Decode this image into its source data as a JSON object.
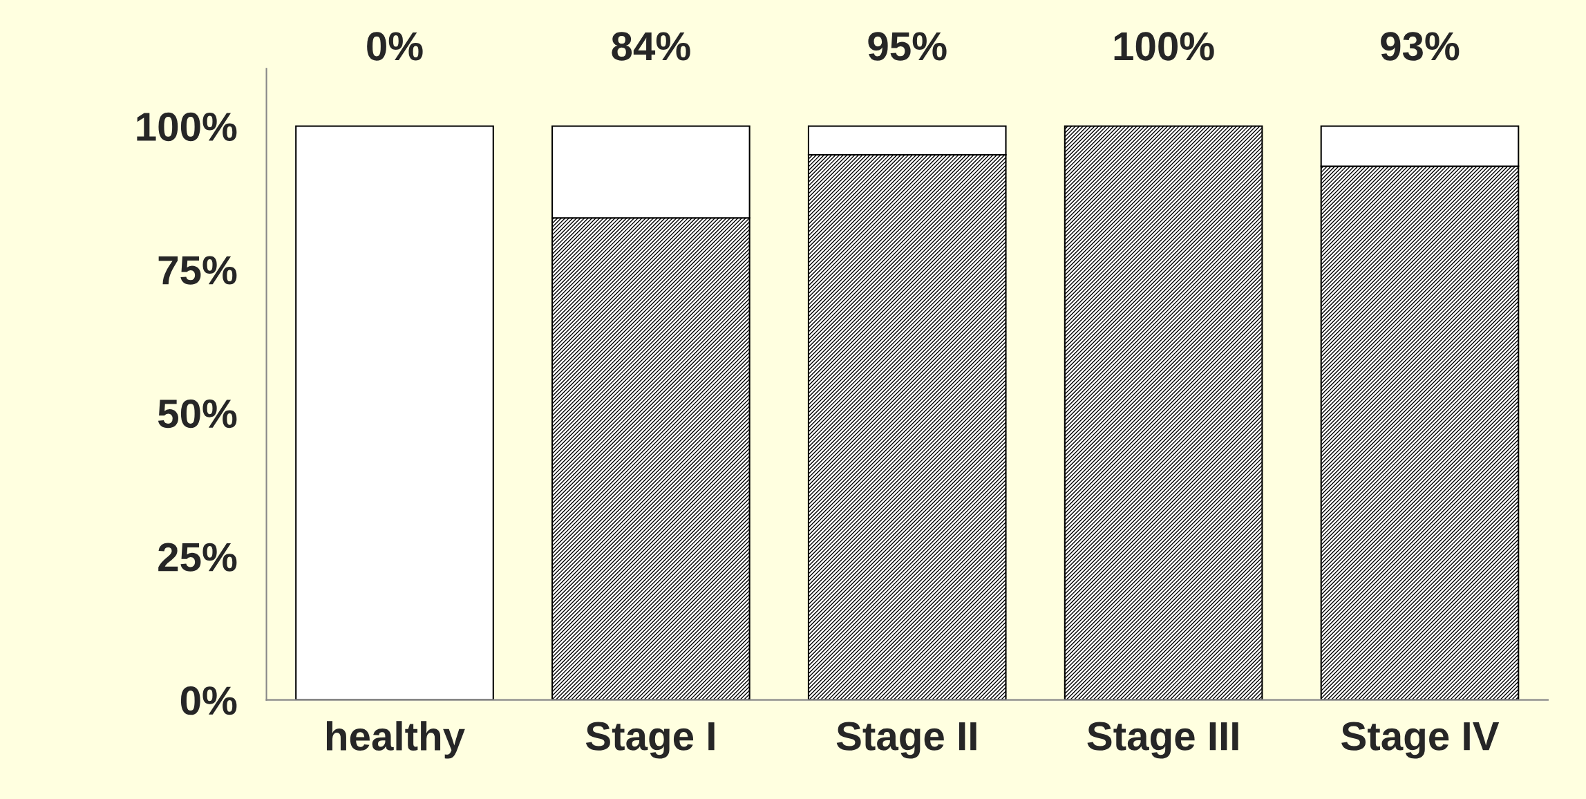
{
  "chart_data": {
    "type": "bar",
    "stacked": true,
    "categories": [
      "healthy",
      "Stage I",
      "Stage II",
      "Stage III",
      "Stage IV"
    ],
    "series": [
      {
        "color": "#000000",
        "values": [
          0,
          84,
          95,
          100,
          93
        ]
      },
      {
        "color": "#ffffff",
        "values": [
          100,
          16,
          5,
          0,
          7
        ]
      }
    ],
    "ylim": [
      0,
      110
    ],
    "yticks": [
      {
        "value": 0,
        "label": "0%"
      },
      {
        "value": 25,
        "label": "25%"
      },
      {
        "value": 50,
        "label": "50%"
      },
      {
        "value": 75,
        "label": "75%"
      },
      {
        "value": 100,
        "label": "100%"
      }
    ],
    "annotations": [
      "0%",
      "84%",
      "95%",
      "100%",
      "93%"
    ],
    "grid": false,
    "legend": false
  }
}
